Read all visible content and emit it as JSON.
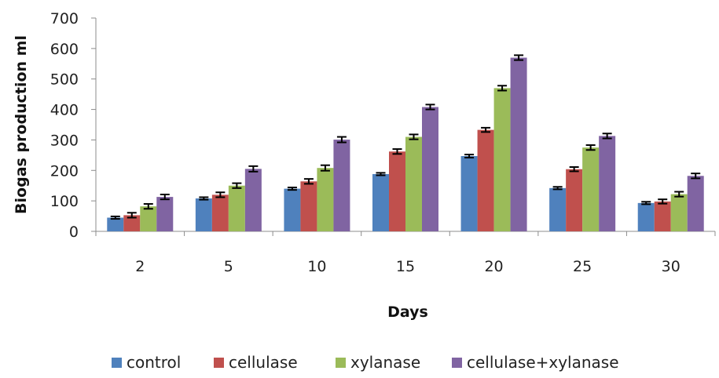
{
  "chart_data": {
    "type": "bar",
    "title": "",
    "xlabel": "Days",
    "ylabel": "Biogas production ml",
    "ylim": [
      0,
      700
    ],
    "yticks": [
      0,
      100,
      200,
      300,
      400,
      500,
      600,
      700
    ],
    "categories": [
      "2",
      "5",
      "10",
      "15",
      "20",
      "25",
      "30"
    ],
    "series": [
      {
        "name": "control",
        "color": "#4f81bd",
        "values": [
          45,
          108,
          140,
          188,
          247,
          142,
          93
        ],
        "errors": [
          4,
          4,
          4,
          4,
          5,
          4,
          4
        ]
      },
      {
        "name": "cellulase",
        "color": "#c0504d",
        "values": [
          53,
          120,
          164,
          262,
          333,
          204,
          98
        ],
        "errors": [
          8,
          8,
          8,
          8,
          7,
          7,
          7
        ]
      },
      {
        "name": "xylanase",
        "color": "#9bbb59",
        "values": [
          82,
          150,
          208,
          310,
          470,
          275,
          122
        ],
        "errors": [
          8,
          8,
          9,
          8,
          8,
          8,
          8
        ]
      },
      {
        "name": "cellulase+xylanase",
        "color": "#8064a2",
        "values": [
          113,
          205,
          301,
          408,
          570,
          313,
          182
        ],
        "errors": [
          8,
          9,
          9,
          8,
          8,
          8,
          8
        ]
      }
    ],
    "error_bars": true,
    "grid": false,
    "legend_position": "bottom"
  }
}
